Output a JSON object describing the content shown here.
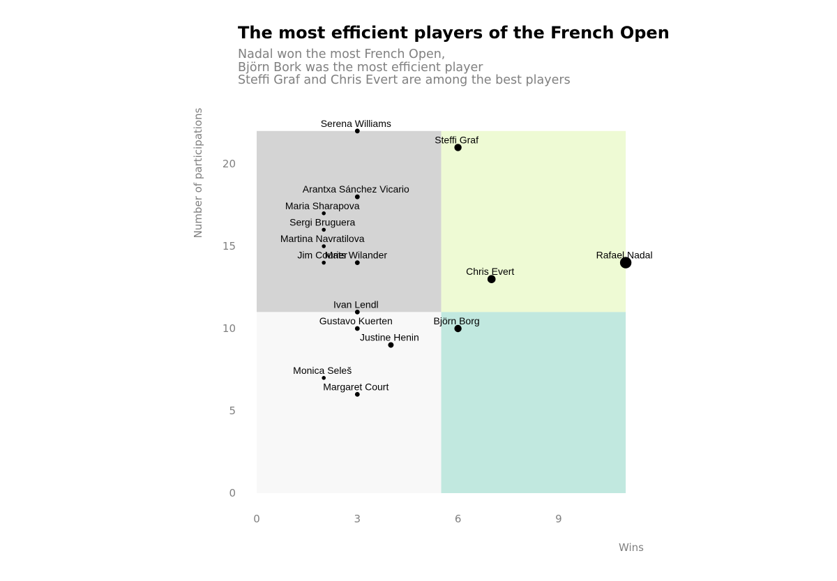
{
  "chart_data": {
    "type": "scatter",
    "title": "The most efficient players of the French Open",
    "subtitle": [
      "Nadal won the most French Open,",
      "Björn Bork was the most efficient player",
      "Steffi Graf and Chris Evert are among the best players"
    ],
    "xlabel": "Wins",
    "ylabel": "Number of participations",
    "xlim": [
      0,
      11
    ],
    "ylim": [
      0,
      22
    ],
    "xticks": [
      0,
      3,
      6,
      9
    ],
    "yticks": [
      0,
      5,
      10,
      15,
      20
    ],
    "grid": false,
    "quadrants": {
      "x_split": 5.5,
      "y_split": 11,
      "colors": {
        "low_wins_high_participations": "#d4d4d4",
        "high_wins_high_participations": "#eefad4",
        "low_wins_low_participations": "#f8f8f8",
        "high_wins_low_participations": "#c1e8df"
      }
    },
    "points": [
      {
        "label": "Serena Williams",
        "wins": 3,
        "participations": 22
      },
      {
        "label": "Steffi Graf",
        "wins": 6,
        "participations": 21
      },
      {
        "label": "Arantxa Sánchez Vicario",
        "wins": 3,
        "participations": 18
      },
      {
        "label": "Maria Sharapova",
        "wins": 2,
        "participations": 17
      },
      {
        "label": "Sergi Bruguera",
        "wins": 2,
        "participations": 16
      },
      {
        "label": "Martina Navratilova",
        "wins": 2,
        "participations": 15
      },
      {
        "label": "Jim Courier",
        "wins": 2,
        "participations": 14
      },
      {
        "label": "Mats Wilander",
        "wins": 3,
        "participations": 14
      },
      {
        "label": "Rafael Nadal",
        "wins": 11,
        "participations": 14
      },
      {
        "label": "Chris Evert",
        "wins": 7,
        "participations": 13
      },
      {
        "label": "Ivan Lendl",
        "wins": 3,
        "participations": 11
      },
      {
        "label": "Gustavo Kuerten",
        "wins": 3,
        "participations": 10
      },
      {
        "label": "Björn Borg",
        "wins": 6,
        "participations": 10
      },
      {
        "label": "Justine Henin",
        "wins": 4,
        "participations": 9
      },
      {
        "label": "Monica Seleš",
        "wins": 2,
        "participations": 7
      },
      {
        "label": "Margaret Court",
        "wins": 3,
        "participations": 6
      }
    ]
  }
}
